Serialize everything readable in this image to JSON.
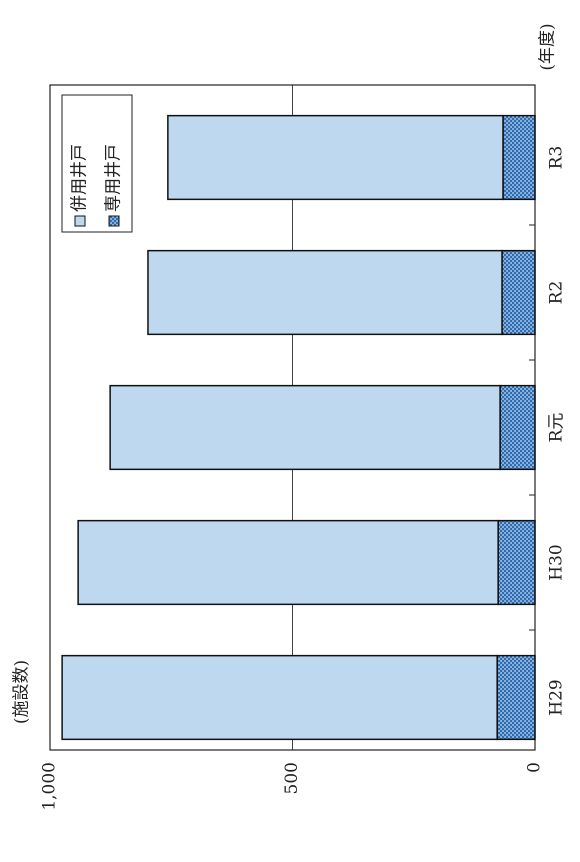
{
  "chart_data": {
    "type": "stacked_bar",
    "ylabel": "(施設数)",
    "xlabel": "(年度)",
    "categories": [
      "H29",
      "H30",
      "R元",
      "R2",
      "R3"
    ],
    "series": [
      {
        "name": "併用井戸",
        "color": "#bdd8ef",
        "values": [
          897,
          866,
          804,
          730,
          691
        ]
      },
      {
        "name": "専用井戸",
        "color": "#2a6db5",
        "pattern": "dots",
        "values": [
          78,
          76,
          72,
          68,
          66
        ]
      }
    ],
    "ylim": [
      0,
      1000
    ],
    "yticks": [
      0,
      500,
      {
        "value": 1000,
        "label": "1,000"
      }
    ],
    "grid": true,
    "legend": "top-right"
  }
}
